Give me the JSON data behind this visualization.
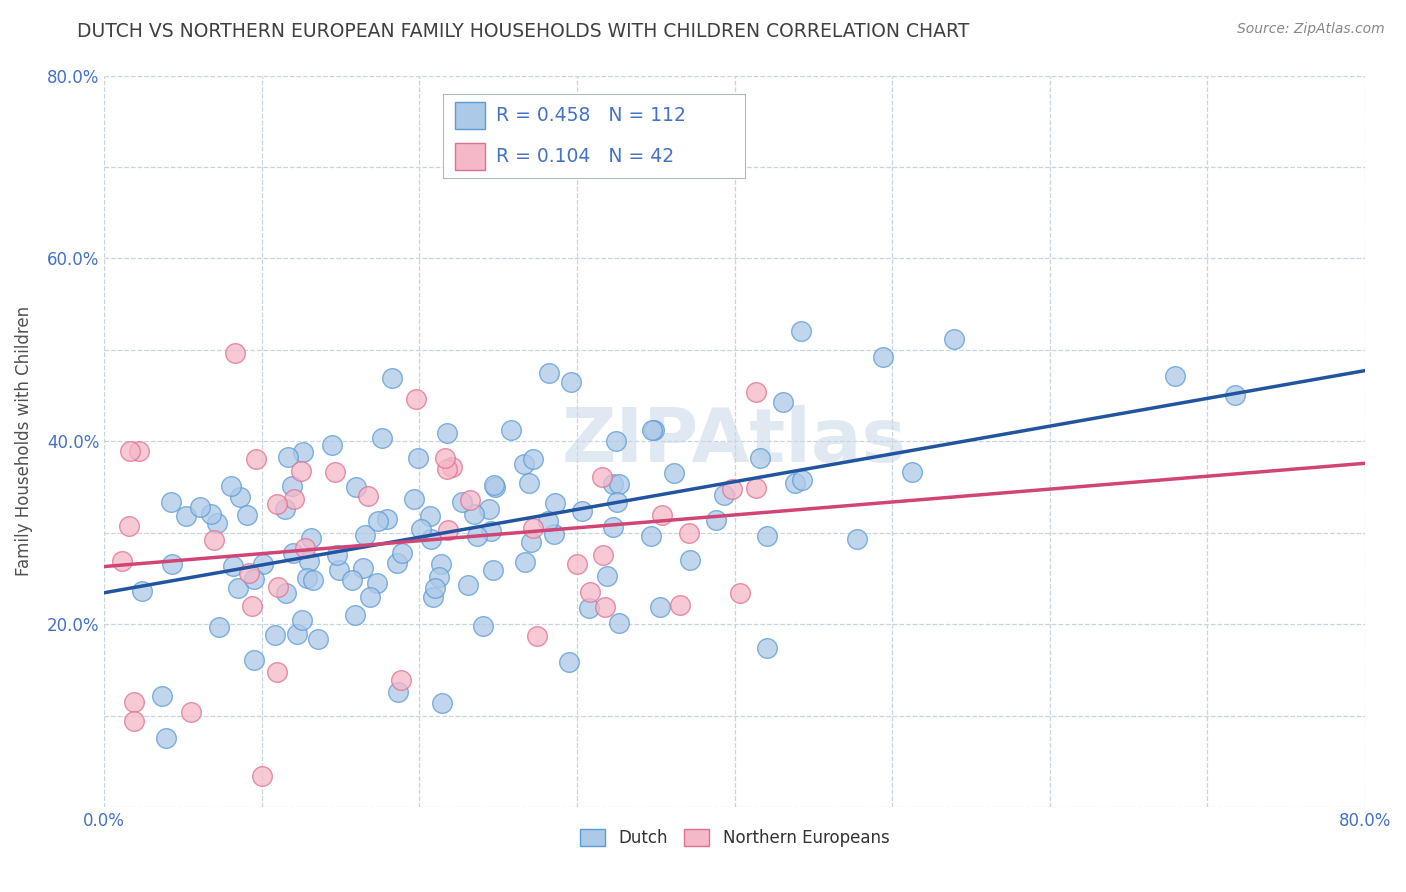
{
  "title": "DUTCH VS NORTHERN EUROPEAN FAMILY HOUSEHOLDS WITH CHILDREN CORRELATION CHART",
  "source": "Source: ZipAtlas.com",
  "ylabel": "Family Households with Children",
  "xlim": [
    0.0,
    0.8
  ],
  "ylim": [
    0.0,
    0.8
  ],
  "xticks": [
    0.0,
    0.1,
    0.2,
    0.3,
    0.4,
    0.5,
    0.6,
    0.7,
    0.8
  ],
  "yticks": [
    0.0,
    0.1,
    0.2,
    0.3,
    0.4,
    0.5,
    0.6,
    0.7,
    0.8
  ],
  "dutch_color": "#adc9e8",
  "dutch_edge_color": "#5b9bd5",
  "northern_color": "#f4b8c8",
  "northern_edge_color": "#e07090",
  "dutch_line_color": "#2255a0",
  "northern_line_color": "#d04575",
  "watermark_color": "#c8d8e8",
  "R_dutch": 0.458,
  "N_dutch": 112,
  "R_northern": 0.104,
  "N_northern": 42,
  "legend_label_dutch": "Dutch",
  "legend_label_northern": "Northern Europeans",
  "background_color": "#ffffff",
  "grid_color": "#c8d4de",
  "title_color": "#404040",
  "axis_label_color": "#4472c4",
  "legend_R_color": "#4472c4"
}
